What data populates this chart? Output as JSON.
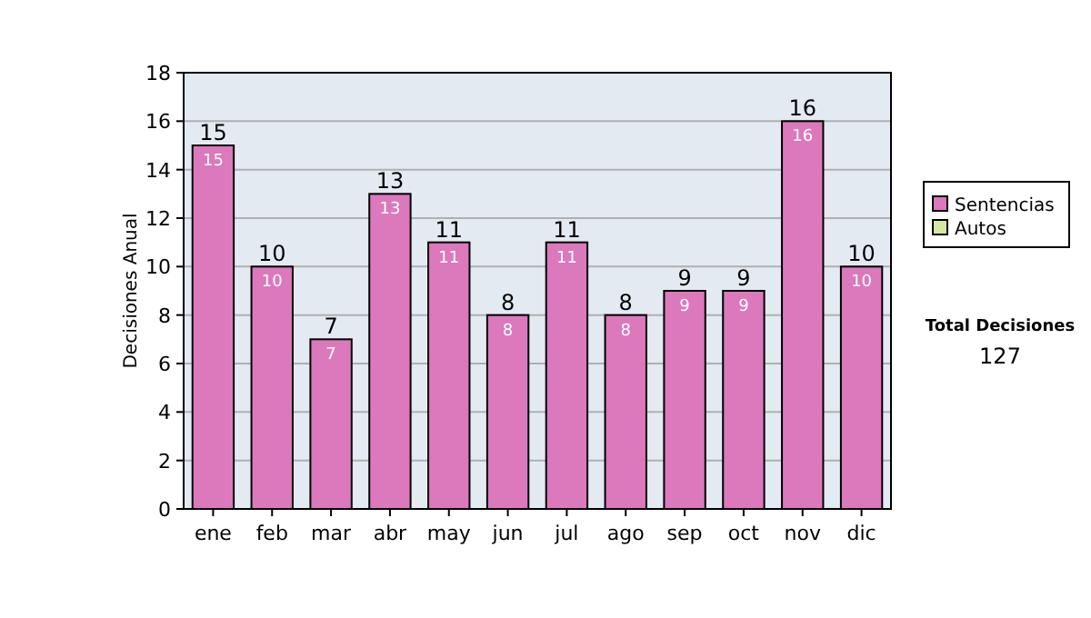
{
  "chart_data": {
    "type": "bar",
    "ylabel": "Decisiones Anual",
    "categories": [
      "ene",
      "feb",
      "mar",
      "abr",
      "may",
      "jun",
      "jul",
      "ago",
      "sep",
      "oct",
      "nov",
      "dic"
    ],
    "series": [
      {
        "name": "Sentencias",
        "color": "#dc78bc",
        "values": [
          15,
          10,
          7,
          13,
          11,
          8,
          11,
          8,
          9,
          9,
          16,
          10
        ],
        "value_labels": [
          "15",
          "10",
          "7",
          "13",
          "11",
          "8",
          "11",
          "8",
          "9",
          "9",
          "16",
          "10"
        ]
      },
      {
        "name": "Autos",
        "color": "#d4e8a4",
        "values": [
          0,
          0,
          0,
          0,
          0,
          0,
          0,
          0,
          0,
          0,
          0,
          0
        ]
      }
    ],
    "stacked": true,
    "totals": [
      "15",
      "10",
      "7",
      "13",
      "11",
      "8",
      "11",
      "8",
      "9",
      "9",
      "16",
      "10"
    ],
    "ylim": [
      0,
      18
    ],
    "yticks": [
      0,
      2,
      4,
      6,
      8,
      10,
      12,
      14,
      16,
      18
    ],
    "grid": "y",
    "legend": "right",
    "annotations": [
      "Total Decisiones",
      "127"
    ]
  }
}
